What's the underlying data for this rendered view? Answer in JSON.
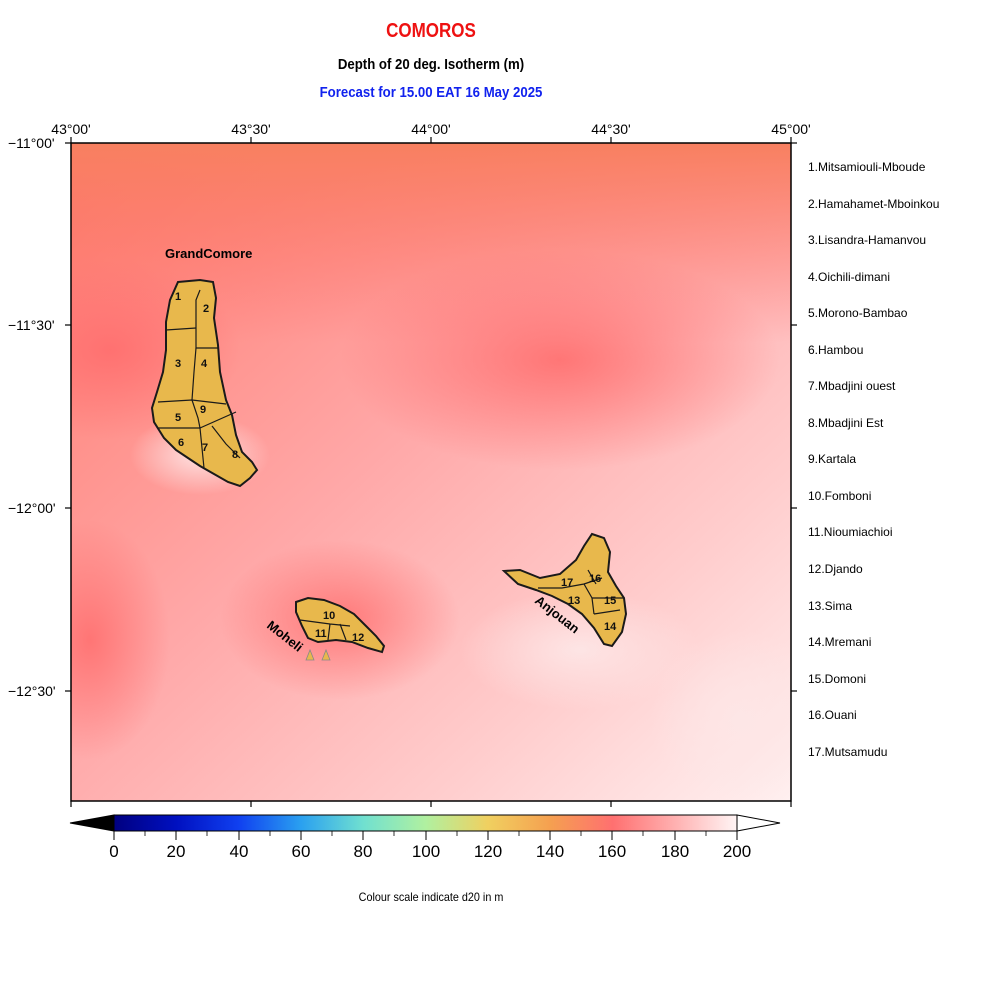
{
  "title": "COMOROS",
  "subtitle": "Depth of 20 deg. Isotherm (m)",
  "forecast": "Forecast for  15.00 EAT 16 May 2025",
  "lon_labels": [
    "43°00'",
    "43°30'",
    "44°00'",
    "44°30'",
    "45°00'"
  ],
  "lat_labels": [
    "−11°00'",
    "−11°30'",
    "−12°00'",
    "−12°30'"
  ],
  "island_labels": {
    "grand_comore": "GrandComore",
    "moheli": "Moheli",
    "anjouan": "Anjouan"
  },
  "region_numbers": [
    "1",
    "2",
    "3",
    "4",
    "5",
    "6",
    "7",
    "8",
    "9",
    "10",
    "11",
    "12",
    "13",
    "14",
    "15",
    "16",
    "17"
  ],
  "regions": [
    "1.Mitsamiouli-Mboude",
    "2.Hamahamet-Mboinkou",
    "3.Lisandra-Hamanvou",
    "4.Oichili-dimani",
    "5.Morono-Bambao",
    "6.Hambou",
    "7.Mbadjini ouest",
    "8.Mbadjini Est",
    "9.Kartala",
    "10.Fomboni",
    "11.Nioumiachioi",
    "12.Djando",
    "13.Sima",
    "14.Mremani",
    "15.Domoni",
    "16.Ouani",
    "17.Mutsamudu"
  ],
  "colorbar": {
    "tick_labels": [
      "0",
      "20",
      "40",
      "60",
      "80",
      "100",
      "120",
      "140",
      "160",
      "180",
      "200"
    ],
    "min": 0,
    "max": 200,
    "caption": "Colour scale indicate d20 in m"
  },
  "colors": {
    "title": "#ee1111",
    "forecast": "#1122ee",
    "land": "#e8b84c"
  }
}
